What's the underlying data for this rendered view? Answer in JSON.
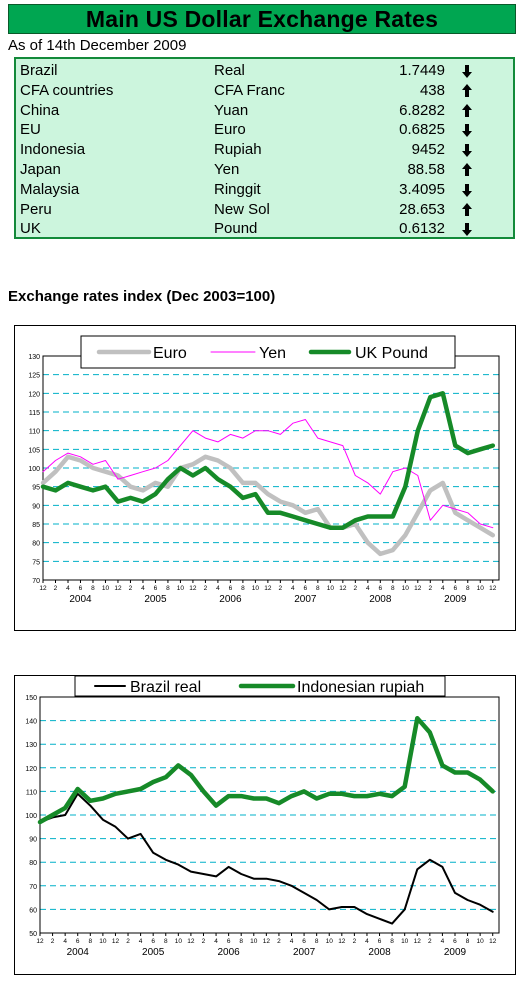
{
  "header": {
    "title": "Main US Dollar Exchange Rates",
    "as_of": "As of 14th December 2009"
  },
  "rates": [
    {
      "country": "Brazil",
      "currency": "Real",
      "value": "1.7449",
      "direction": "down"
    },
    {
      "country": "CFA countries",
      "currency": "CFA Franc",
      "value": "438",
      "direction": "up"
    },
    {
      "country": "China",
      "currency": "Yuan",
      "value": "6.8282",
      "direction": "up"
    },
    {
      "country": "EU",
      "currency": "Euro",
      "value": "0.6825",
      "direction": "down"
    },
    {
      "country": "Indonesia",
      "currency": "Rupiah",
      "value": "9452",
      "direction": "down"
    },
    {
      "country": "Japan",
      "currency": "Yen",
      "value": "88.58",
      "direction": "up"
    },
    {
      "country": "Malaysia",
      "currency": "Ringgit",
      "value": "3.4095",
      "direction": "down"
    },
    {
      "country": "Peru",
      "currency": "New Sol",
      "value": "28.653",
      "direction": "up"
    },
    {
      "country": "UK",
      "currency": "Pound",
      "value": "0.6132",
      "direction": "down"
    }
  ],
  "section_title": "Exchange rates index (Dec 2003=100)",
  "colors": {
    "title_bg": "#00a651",
    "table_bg": "#ccf5dd",
    "table_border": "#138a3a",
    "euro": "#c0c0c0",
    "yen": "#ff00ff",
    "pound": "#168a28",
    "real": "#000000",
    "rupiah": "#168a28",
    "grid": "#00b0c8"
  },
  "chart_data": [
    {
      "type": "line",
      "ylim": [
        70,
        130
      ],
      "yticks": [
        70,
        75,
        80,
        85,
        90,
        95,
        100,
        105,
        110,
        115,
        120,
        125,
        130
      ],
      "xlim": [
        0,
        73
      ],
      "x_tick_labels": [
        "12",
        "2",
        "4",
        "6",
        "8",
        "10",
        "12",
        "2",
        "4",
        "6",
        "8",
        "10",
        "12",
        "2",
        "4",
        "6",
        "8",
        "10",
        "12",
        "2",
        "4",
        "6",
        "8",
        "10",
        "12",
        "2",
        "4",
        "6",
        "8",
        "10",
        "12",
        "2",
        "4",
        "6",
        "8",
        "10",
        "12"
      ],
      "year_labels": [
        "2004",
        "2005",
        "2006",
        "2007",
        "2008",
        "2009"
      ],
      "legend": "top-center",
      "grid": true,
      "series": [
        {
          "name": "Euro",
          "x": [
            0,
            2,
            4,
            6,
            8,
            10,
            12,
            14,
            16,
            18,
            20,
            22,
            24,
            26,
            28,
            30,
            32,
            34,
            36,
            38,
            40,
            42,
            44,
            46,
            48,
            50,
            52,
            54,
            56,
            58,
            60,
            62,
            64,
            66,
            68,
            70,
            72
          ],
          "values": [
            96,
            99,
            103,
            102,
            100,
            99,
            98,
            95,
            94,
            96,
            95,
            100,
            101,
            103,
            102,
            100,
            96,
            96,
            93,
            91,
            90,
            88,
            89,
            84,
            84,
            85,
            80,
            77,
            78,
            82,
            88,
            94,
            96,
            88,
            86,
            84,
            82
          ]
        },
        {
          "name": "Yen",
          "x": [
            0,
            2,
            4,
            6,
            8,
            10,
            12,
            14,
            16,
            18,
            20,
            22,
            24,
            26,
            28,
            30,
            32,
            34,
            36,
            38,
            40,
            42,
            44,
            46,
            48,
            50,
            52,
            54,
            56,
            58,
            60,
            62,
            64,
            66,
            68,
            70,
            72
          ],
          "values": [
            99,
            102,
            104,
            103,
            101,
            102,
            97,
            98,
            99,
            100,
            102,
            106,
            110,
            108,
            107,
            109,
            108,
            110,
            110,
            109,
            112,
            113,
            108,
            107,
            106,
            98,
            96,
            93,
            99,
            100,
            98,
            86,
            90,
            89,
            88,
            85,
            84
          ]
        },
        {
          "name": "UK Pound",
          "x": [
            0,
            2,
            4,
            6,
            8,
            10,
            12,
            14,
            16,
            18,
            20,
            22,
            24,
            26,
            28,
            30,
            32,
            34,
            36,
            38,
            40,
            42,
            44,
            46,
            48,
            50,
            52,
            54,
            56,
            58,
            60,
            62,
            64,
            66,
            68,
            70,
            72
          ],
          "values": [
            95,
            94,
            96,
            95,
            94,
            95,
            91,
            92,
            91,
            93,
            97,
            100,
            98,
            100,
            97,
            95,
            92,
            93,
            88,
            88,
            87,
            86,
            85,
            84,
            84,
            86,
            87,
            87,
            87,
            95,
            110,
            119,
            120,
            106,
            104,
            105,
            106
          ]
        }
      ]
    },
    {
      "type": "line",
      "ylim": [
        50,
        150
      ],
      "yticks": [
        50,
        60,
        70,
        80,
        90,
        100,
        110,
        120,
        130,
        140,
        150
      ],
      "xlim": [
        0,
        73
      ],
      "x_tick_labels": [
        "12",
        "2",
        "4",
        "6",
        "8",
        "10",
        "12",
        "2",
        "4",
        "6",
        "8",
        "10",
        "12",
        "2",
        "4",
        "6",
        "8",
        "10",
        "12",
        "2",
        "4",
        "6",
        "8",
        "10",
        "12",
        "2",
        "4",
        "6",
        "8",
        "10",
        "12",
        "2",
        "4",
        "6",
        "8",
        "10",
        "12"
      ],
      "year_labels": [
        "2004",
        "2005",
        "2006",
        "2007",
        "2008",
        "2009"
      ],
      "legend": "top-center",
      "grid": true,
      "series": [
        {
          "name": "Brazil real",
          "x": [
            0,
            2,
            4,
            6,
            8,
            10,
            12,
            14,
            16,
            18,
            20,
            22,
            24,
            26,
            28,
            30,
            32,
            34,
            36,
            38,
            40,
            42,
            44,
            46,
            48,
            50,
            52,
            54,
            56,
            58,
            60,
            62,
            64,
            66,
            68,
            70,
            72
          ],
          "values": [
            97,
            99,
            100,
            109,
            104,
            98,
            95,
            90,
            92,
            84,
            81,
            79,
            76,
            75,
            74,
            78,
            75,
            73,
            73,
            72,
            70,
            67,
            64,
            60,
            61,
            61,
            58,
            56,
            54,
            60,
            77,
            81,
            78,
            67,
            64,
            62,
            59
          ]
        },
        {
          "name": "Indonesian rupiah",
          "x": [
            0,
            2,
            4,
            6,
            8,
            10,
            12,
            14,
            16,
            18,
            20,
            22,
            24,
            26,
            28,
            30,
            32,
            34,
            36,
            38,
            40,
            42,
            44,
            46,
            48,
            50,
            52,
            54,
            56,
            58,
            60,
            62,
            64,
            66,
            68,
            70,
            72
          ],
          "values": [
            97,
            100,
            103,
            111,
            106,
            107,
            109,
            110,
            111,
            114,
            116,
            121,
            117,
            110,
            104,
            108,
            108,
            107,
            107,
            105,
            108,
            110,
            107,
            109,
            109,
            108,
            108,
            109,
            108,
            112,
            141,
            135,
            121,
            118,
            118,
            115,
            110
          ]
        }
      ]
    }
  ]
}
